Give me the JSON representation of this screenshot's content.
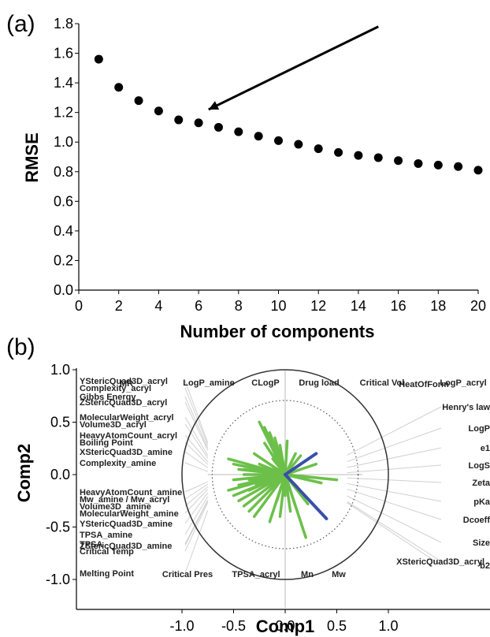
{
  "chart_data": [
    {
      "panel_label": "(a)",
      "type": "scatter",
      "xlabel": "Number of components",
      "ylabel": "RMSE",
      "xlim": [
        0,
        20
      ],
      "ylim": [
        0,
        1.8
      ],
      "x_ticks": [
        "0",
        "2",
        "4",
        "6",
        "8",
        "10",
        "12",
        "14",
        "16",
        "18",
        "20"
      ],
      "y_ticks": [
        "0.0",
        "0.2",
        "0.4",
        "0.6",
        "0.8",
        "1.0",
        "1.2",
        "1.4",
        "1.6",
        "1.8"
      ],
      "x": [
        1,
        2,
        3,
        4,
        5,
        6,
        7,
        8,
        9,
        10,
        11,
        12,
        13,
        14,
        15,
        16,
        17,
        18,
        19,
        20
      ],
      "y": [
        1.56,
        1.37,
        1.28,
        1.21,
        1.15,
        1.13,
        1.1,
        1.07,
        1.04,
        1.01,
        0.985,
        0.955,
        0.93,
        0.91,
        0.895,
        0.875,
        0.855,
        0.845,
        0.835,
        0.81
      ],
      "arrow": {
        "from": [
          15,
          1.78
        ],
        "to": [
          6.5,
          1.22
        ]
      },
      "grid": false
    },
    {
      "panel_label": "(b)",
      "type": "scatter",
      "xlabel": "Comp1",
      "ylabel": "Comp2",
      "xlim": [
        -1.0,
        1.0
      ],
      "ylim": [
        -1.0,
        1.0
      ],
      "x_ticks": [
        "-1.0",
        "-0.5",
        "0.0",
        "0.5",
        "1.0"
      ],
      "y_ticks": [
        "1.0",
        "0.5",
        "0.0",
        "-0.5",
        "-1.0"
      ],
      "green_loadings": [
        [
          -0.55,
          -0.15
        ],
        [
          -0.5,
          -0.2
        ],
        [
          -0.45,
          -0.25
        ],
        [
          -0.4,
          -0.3
        ],
        [
          -0.35,
          -0.35
        ],
        [
          -0.3,
          -0.4
        ],
        [
          -0.55,
          0.15
        ],
        [
          -0.5,
          0.1
        ],
        [
          -0.45,
          0.05
        ],
        [
          -0.4,
          0.0
        ],
        [
          -0.35,
          -0.05
        ],
        [
          -0.5,
          -0.05
        ],
        [
          -0.25,
          0.5
        ],
        [
          -0.2,
          0.45
        ],
        [
          -0.15,
          0.4
        ],
        [
          -0.1,
          0.35
        ],
        [
          -0.05,
          0.28
        ],
        [
          -0.2,
          0.3
        ],
        [
          -0.3,
          0.2
        ],
        [
          -0.25,
          0.1
        ],
        [
          -0.35,
          -0.15
        ],
        [
          -0.28,
          -0.1
        ],
        [
          -0.45,
          -0.1
        ],
        [
          -0.4,
          0.05
        ],
        [
          -0.05,
          -0.4
        ],
        [
          0.05,
          -0.35
        ],
        [
          0.1,
          -0.3
        ],
        [
          0.22,
          -0.28
        ],
        [
          0.2,
          -0.6
        ],
        [
          0.1,
          0.2
        ],
        [
          0.15,
          0.18
        ],
        [
          0.3,
          0.1
        ],
        [
          0.5,
          -0.05
        ],
        [
          0.35,
          -0.08
        ],
        [
          -0.15,
          -0.45
        ],
        [
          0.02,
          0.32
        ],
        [
          0.0,
          -0.2
        ],
        [
          -0.08,
          -0.25
        ],
        [
          0.12,
          -0.12
        ],
        [
          -0.12,
          0.15
        ]
      ],
      "blue_loadings": [
        [
          0.3,
          0.2
        ],
        [
          0.4,
          -0.42
        ]
      ],
      "left_labels": [
        "YStericQuad3D_acryl",
        "Complexity_acryl",
        "Gibbs Energy",
        "ZStericQuad3D_acryl",
        "MolecularWeight_acryl",
        "Volume3D_acryl",
        "HeavyAtomCount_acryl",
        "Boiling Point",
        "XStericQuad3D_amine",
        "Complexity_amine",
        "HeavyAtomCount_amine",
        "Mw_amine / Mw_acryl",
        "Volume3D_amine",
        "MolecularWeight_amine",
        "YStericQuad3D_amine",
        "TPSA_amine",
        "TPSA",
        "ZStericQuad3D_amine",
        "Critical Temp",
        "Melting Point"
      ],
      "top_labels": [
        "LogP_amine",
        "CLogP",
        "Drug load",
        "Critical Vol",
        "HeatOfForm",
        "LogP_acryl",
        "MR"
      ],
      "right_labels": [
        "Henry's law",
        "LogP",
        "e1",
        "LogS",
        "Zeta",
        "pKa",
        "Dcoeff",
        "Size",
        "XStericQuad3D_acryl",
        "b2"
      ],
      "bottom_labels": [
        "Critical Pres",
        "TPSA_acryl",
        "Mn",
        "Mw"
      ]
    }
  ]
}
